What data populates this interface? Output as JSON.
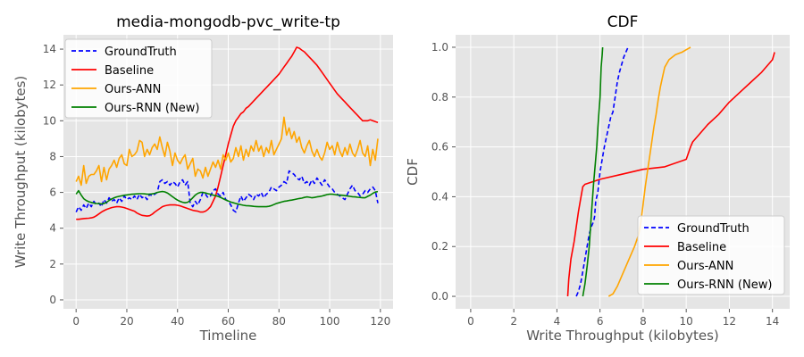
{
  "chart_data": [
    {
      "type": "line",
      "title": "media-mongodb-pvc_write-tp",
      "xlabel": "Timeline",
      "ylabel": "Write Throughput (kilobytes)",
      "xlim": [
        -5,
        125
      ],
      "ylim": [
        -0.5,
        14.8
      ],
      "xticks": [
        0,
        20,
        40,
        60,
        80,
        100,
        120
      ],
      "yticks": [
        0,
        2,
        4,
        6,
        8,
        10,
        12,
        14
      ],
      "grid": true,
      "legend_position": "upper-left",
      "series": [
        {
          "name": "GroundTruth",
          "color": "#0000ff",
          "dash": true,
          "x_start": 0,
          "x_step": 1,
          "values": [
            4.9,
            5.2,
            5.0,
            5.3,
            5.1,
            5.4,
            5.2,
            5.5,
            5.3,
            5.4,
            5.2,
            5.6,
            5.4,
            5.7,
            5.5,
            5.6,
            5.4,
            5.7,
            5.5,
            5.8,
            5.6,
            5.7,
            5.6,
            5.8,
            5.6,
            5.9,
            5.7,
            5.8,
            5.6,
            5.9,
            5.8,
            5.9,
            6.0,
            6.6,
            6.7,
            6.5,
            6.6,
            6.4,
            6.6,
            6.5,
            6.3,
            6.6,
            6.7,
            6.4,
            6.6,
            5.4,
            5.2,
            5.5,
            5.3,
            5.6,
            6.0,
            5.9,
            5.7,
            5.8,
            6.1,
            6.2,
            5.9,
            5.8,
            6.0,
            5.6,
            5.5,
            5.3,
            5.0,
            4.9,
            5.4,
            5.8,
            5.5,
            5.7,
            5.9,
            5.8,
            5.6,
            5.9,
            5.8,
            6.0,
            5.7,
            5.9,
            6.0,
            6.3,
            6.2,
            6.1,
            6.3,
            6.4,
            6.6,
            6.5,
            7.2,
            7.1,
            7.0,
            6.8,
            6.7,
            6.9,
            6.5,
            6.6,
            6.4,
            6.7,
            6.5,
            6.8,
            6.6,
            6.4,
            6.7,
            6.5,
            6.3,
            6.2,
            6.0,
            5.9,
            5.8,
            5.7,
            5.6,
            5.9,
            6.2,
            6.4,
            6.1,
            6.0,
            5.8,
            5.9,
            6.1,
            6.0,
            6.2,
            6.3,
            6.1,
            5.4
          ]
        },
        {
          "name": "Baseline",
          "color": "#ff0000",
          "dash": false,
          "x_start": 0,
          "x_step": 1,
          "values": [
            4.5,
            4.5,
            4.52,
            4.54,
            4.55,
            4.56,
            4.58,
            4.62,
            4.7,
            4.8,
            4.9,
            4.98,
            5.05,
            5.1,
            5.15,
            5.18,
            5.2,
            5.2,
            5.18,
            5.15,
            5.1,
            5.05,
            5.0,
            4.95,
            4.85,
            4.78,
            4.72,
            4.7,
            4.68,
            4.7,
            4.78,
            4.9,
            5.0,
            5.1,
            5.2,
            5.25,
            5.28,
            5.3,
            5.3,
            5.3,
            5.28,
            5.25,
            5.2,
            5.15,
            5.1,
            5.05,
            5.0,
            4.97,
            4.95,
            4.9,
            4.9,
            4.95,
            5.05,
            5.2,
            5.5,
            5.8,
            6.3,
            6.9,
            7.5,
            8.1,
            8.7,
            9.2,
            9.7,
            10.0,
            10.2,
            10.4,
            10.5,
            10.7,
            10.8,
            10.95,
            11.1,
            11.25,
            11.4,
            11.55,
            11.7,
            11.85,
            12.0,
            12.15,
            12.3,
            12.45,
            12.6,
            12.8,
            13.0,
            13.2,
            13.4,
            13.6,
            13.85,
            14.1,
            14.05,
            13.95,
            13.85,
            13.7,
            13.55,
            13.4,
            13.25,
            13.1,
            12.9,
            12.7,
            12.5,
            12.3,
            12.1,
            11.9,
            11.7,
            11.5,
            11.35,
            11.2,
            11.05,
            10.9,
            10.75,
            10.6,
            10.45,
            10.3,
            10.15,
            10.0,
            10.0,
            10.0,
            10.05,
            10.0,
            9.95,
            9.9
          ]
        },
        {
          "name": "Ours-ANN",
          "color": "#ffa500",
          "dash": false,
          "x_start": 0,
          "x_step": 1,
          "values": [
            6.6,
            6.9,
            6.4,
            7.5,
            6.5,
            6.9,
            7.0,
            7.0,
            7.2,
            7.5,
            6.6,
            7.4,
            6.7,
            7.3,
            7.5,
            7.8,
            7.4,
            7.9,
            8.1,
            7.6,
            7.5,
            8.4,
            8.0,
            8.1,
            8.3,
            8.9,
            8.8,
            8.0,
            8.4,
            8.1,
            8.5,
            8.7,
            8.4,
            9.1,
            8.5,
            8.0,
            8.8,
            8.3,
            7.5,
            8.2,
            7.8,
            7.6,
            7.9,
            8.1,
            7.3,
            7.6,
            7.9,
            6.9,
            7.3,
            7.2,
            6.8,
            7.4,
            6.9,
            7.3,
            7.7,
            7.4,
            7.8,
            7.3,
            8.1,
            7.8,
            8.2,
            7.7,
            7.9,
            8.5,
            8.0,
            8.6,
            7.8,
            8.4,
            8.0,
            8.6,
            8.3,
            8.9,
            8.3,
            8.6,
            8.0,
            8.5,
            8.2,
            8.9,
            8.1,
            8.4,
            8.7,
            9.0,
            10.2,
            9.2,
            9.6,
            9.0,
            9.4,
            8.8,
            9.1,
            8.5,
            8.2,
            8.6,
            8.9,
            8.3,
            8.0,
            8.4,
            8.0,
            7.8,
            8.2,
            8.8,
            8.4,
            8.6,
            8.1,
            8.8,
            8.3,
            8.0,
            8.5,
            8.1,
            8.7,
            8.2,
            8.0,
            8.4,
            8.9,
            8.2,
            8.0,
            8.6,
            7.5,
            8.4,
            7.8,
            9.0
          ]
        },
        {
          "name": "Ours-RNN (New)",
          "color": "#008000",
          "dash": false,
          "x_start": 0,
          "x_step": 1,
          "values": [
            5.9,
            6.1,
            5.85,
            5.65,
            5.55,
            5.48,
            5.44,
            5.4,
            5.38,
            5.37,
            5.36,
            5.38,
            5.45,
            5.55,
            5.63,
            5.7,
            5.75,
            5.78,
            5.81,
            5.84,
            5.86,
            5.88,
            5.9,
            5.91,
            5.92,
            5.93,
            5.93,
            5.92,
            5.9,
            5.9,
            5.92,
            5.95,
            6.0,
            6.03,
            6.05,
            6.03,
            5.97,
            5.87,
            5.76,
            5.66,
            5.57,
            5.5,
            5.45,
            5.42,
            5.45,
            5.55,
            5.7,
            5.85,
            5.95,
            6.0,
            6.0,
            5.97,
            5.93,
            5.9,
            5.85,
            5.82,
            5.78,
            5.72,
            5.65,
            5.58,
            5.52,
            5.46,
            5.42,
            5.38,
            5.34,
            5.31,
            5.28,
            5.26,
            5.25,
            5.24,
            5.22,
            5.21,
            5.2,
            5.2,
            5.2,
            5.2,
            5.22,
            5.26,
            5.32,
            5.38,
            5.42,
            5.46,
            5.5,
            5.52,
            5.55,
            5.57,
            5.6,
            5.63,
            5.66,
            5.68,
            5.72,
            5.75,
            5.73,
            5.7,
            5.72,
            5.75,
            5.77,
            5.8,
            5.84,
            5.88,
            5.9,
            5.9,
            5.88,
            5.86,
            5.85,
            5.84,
            5.82,
            5.8,
            5.78,
            5.76,
            5.75,
            5.73,
            5.72,
            5.7,
            5.7,
            5.78,
            5.85,
            5.95,
            6.02,
            6.05
          ]
        }
      ]
    },
    {
      "type": "line",
      "title": "CDF",
      "xlabel": "Write Throughput (kilobytes)",
      "ylabel": "CDF",
      "xlim": [
        -0.7,
        14.8
      ],
      "ylim": [
        -0.05,
        1.05
      ],
      "xticks": [
        0,
        2,
        4,
        6,
        8,
        10,
        12,
        14
      ],
      "yticks": [
        0.0,
        0.2,
        0.4,
        0.6,
        0.8,
        1.0
      ],
      "ytick_labels": [
        "0.0",
        "0.2",
        "0.4",
        "0.6",
        "0.8",
        "1.0"
      ],
      "grid": true,
      "legend_position": "lower-right",
      "series": [
        {
          "name": "GroundTruth",
          "color": "#0000ff",
          "dash": true,
          "x": [
            4.9,
            5.0,
            5.1,
            5.2,
            5.3,
            5.4,
            5.5,
            5.6,
            5.7,
            5.75,
            5.8,
            5.9,
            5.95,
            6.0,
            6.1,
            6.2,
            6.3,
            6.4,
            6.5,
            6.6,
            6.7,
            6.8,
            6.9,
            7.0,
            7.1,
            7.2,
            7.3
          ],
          "y": [
            0.0,
            0.02,
            0.05,
            0.1,
            0.15,
            0.2,
            0.25,
            0.28,
            0.3,
            0.32,
            0.38,
            0.42,
            0.46,
            0.5,
            0.55,
            0.6,
            0.64,
            0.68,
            0.72,
            0.74,
            0.8,
            0.86,
            0.9,
            0.93,
            0.96,
            0.98,
            1.0
          ]
        },
        {
          "name": "Baseline",
          "color": "#ff0000",
          "dash": false,
          "x": [
            4.5,
            4.55,
            4.65,
            4.8,
            4.9,
            5.0,
            5.1,
            5.2,
            5.3,
            6.0,
            7.0,
            8.0,
            9.0,
            10.0,
            10.2,
            10.3,
            10.6,
            11.0,
            11.5,
            12.0,
            12.5,
            13.0,
            13.5,
            14.0,
            14.1
          ],
          "y": [
            0.0,
            0.07,
            0.15,
            0.22,
            0.28,
            0.34,
            0.39,
            0.44,
            0.45,
            0.47,
            0.49,
            0.51,
            0.52,
            0.55,
            0.6,
            0.62,
            0.65,
            0.69,
            0.73,
            0.78,
            0.82,
            0.86,
            0.9,
            0.95,
            0.98
          ]
        },
        {
          "name": "Ours-ANN",
          "color": "#ffa500",
          "dash": false,
          "x": [
            6.4,
            6.6,
            6.8,
            7.0,
            7.2,
            7.4,
            7.6,
            7.8,
            7.9,
            8.0,
            8.1,
            8.2,
            8.3,
            8.4,
            8.5,
            8.6,
            8.7,
            8.8,
            8.9,
            9.0,
            9.2,
            9.5,
            9.8,
            10.0,
            10.2
          ],
          "y": [
            0.0,
            0.01,
            0.04,
            0.08,
            0.12,
            0.16,
            0.2,
            0.25,
            0.3,
            0.37,
            0.44,
            0.5,
            0.56,
            0.62,
            0.68,
            0.73,
            0.79,
            0.84,
            0.88,
            0.92,
            0.95,
            0.97,
            0.98,
            0.99,
            1.0
          ]
        },
        {
          "name": "Ours-RNN (New)",
          "color": "#008000",
          "dash": false,
          "x": [
            5.2,
            5.3,
            5.4,
            5.5,
            5.6,
            5.7,
            5.8,
            5.85,
            5.9,
            6.0,
            6.05,
            6.1,
            6.12
          ],
          "y": [
            0.0,
            0.05,
            0.12,
            0.2,
            0.33,
            0.45,
            0.55,
            0.6,
            0.68,
            0.8,
            0.92,
            0.97,
            1.0
          ]
        }
      ]
    }
  ]
}
